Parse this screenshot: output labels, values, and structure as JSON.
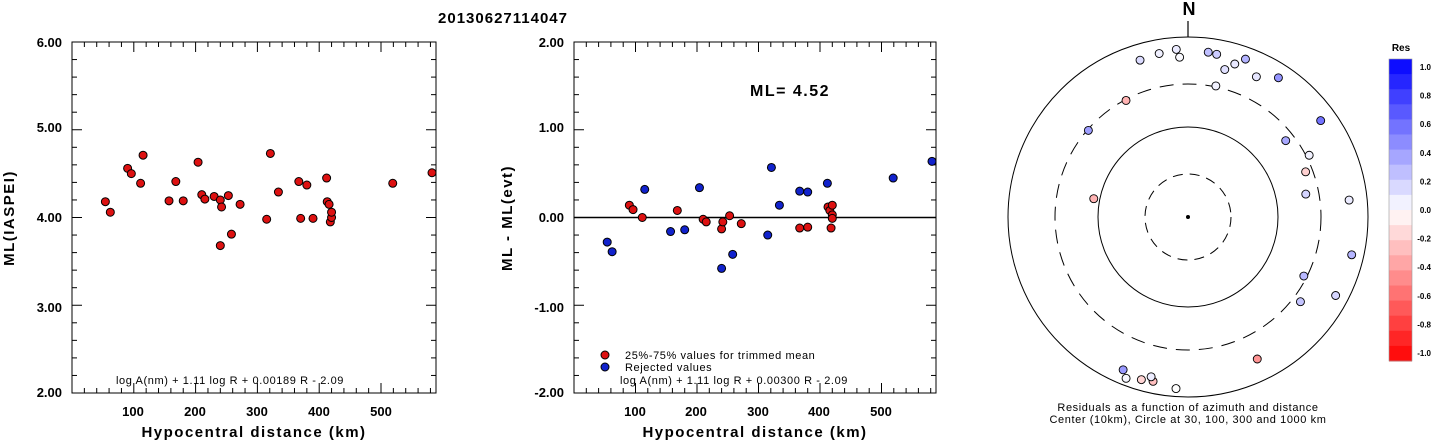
{
  "title": "20130627114047",
  "chart_data": [
    {
      "type": "scatter",
      "xlabel": "Hypocentral distance (km)",
      "ylabel": "ML(IASPEI)",
      "xlim": [
        0,
        590
      ],
      "ylim": [
        2.0,
        6.0
      ],
      "xticks": [
        "100",
        "200",
        "300",
        "400",
        "500"
      ],
      "yticks": [
        "2.00",
        "3.00",
        "4.00",
        "5.00",
        "6.00"
      ],
      "formula": "log A(nm) + 1.11 log R + 0.00189 R - 2.09",
      "series": [
        {
          "color": "#dd1111",
          "points": [
            [
              54,
              4.18
            ],
            [
              62,
              4.06
            ],
            [
              90,
              4.56
            ],
            [
              96,
              4.5
            ],
            [
              111,
              4.39
            ],
            [
              115,
              4.71
            ],
            [
              157,
              4.19
            ],
            [
              168,
              4.41
            ],
            [
              180,
              4.19
            ],
            [
              204,
              4.63
            ],
            [
              210,
              4.26
            ],
            [
              215,
              4.21
            ],
            [
              230,
              4.24
            ],
            [
              240,
              3.68
            ],
            [
              240,
              4.2
            ],
            [
              242,
              4.12
            ],
            [
              253,
              4.25
            ],
            [
              258,
              3.81
            ],
            [
              272,
              4.15
            ],
            [
              315,
              3.98
            ],
            [
              321,
              4.73
            ],
            [
              334,
              4.29
            ],
            [
              367,
              4.41
            ],
            [
              370,
              3.99
            ],
            [
              380,
              4.37
            ],
            [
              390,
              3.99
            ],
            [
              412,
              4.45
            ],
            [
              413,
              4.18
            ],
            [
              416,
              4.15
            ],
            [
              418,
              3.95
            ],
            [
              420,
              4.0
            ],
            [
              420,
              4.06
            ],
            [
              519,
              4.39
            ],
            [
              590,
              4.51
            ]
          ]
        }
      ]
    },
    {
      "type": "scatter",
      "xlabel": "Hypocentral distance (km)",
      "ylabel": "ML - ML(evt)",
      "xlim": [
        0,
        590
      ],
      "ylim": [
        -2.0,
        2.0
      ],
      "xticks": [
        "100",
        "200",
        "300",
        "400",
        "500"
      ],
      "yticks": [
        "-2.00",
        "-1.00",
        "0.00",
        "1.00",
        "2.00"
      ],
      "annotation": "ML= 4.52",
      "reference_line": 0,
      "formula": "log A(nm) + 1.11 log R + 0.00300 R - 2.09",
      "legend_position": "bottom-left",
      "series": [
        {
          "name": "25%-75% values for trimmed mean",
          "color": "#dd1111",
          "points": [
            [
              90,
              0.14
            ],
            [
              96,
              0.09
            ],
            [
              111,
              0.0
            ],
            [
              168,
              0.08
            ],
            [
              210,
              -0.02
            ],
            [
              215,
              -0.05
            ],
            [
              240,
              -0.13
            ],
            [
              242,
              -0.05
            ],
            [
              253,
              0.02
            ],
            [
              272,
              -0.07
            ],
            [
              367,
              -0.12
            ],
            [
              380,
              -0.11
            ],
            [
              413,
              0.12
            ],
            [
              416,
              0.08
            ],
            [
              418,
              -0.12
            ],
            [
              420,
              0.14
            ],
            [
              420,
              0.03
            ],
            [
              420,
              -0.01
            ]
          ]
        },
        {
          "name": "Rejected values",
          "color": "#1122cc",
          "points": [
            [
              54,
              -0.28
            ],
            [
              62,
              -0.39
            ],
            [
              115,
              0.32
            ],
            [
              157,
              -0.16
            ],
            [
              180,
              -0.14
            ],
            [
              204,
              0.34
            ],
            [
              240,
              -0.58
            ],
            [
              258,
              -0.42
            ],
            [
              315,
              -0.2
            ],
            [
              321,
              0.57
            ],
            [
              334,
              0.14
            ],
            [
              367,
              0.3
            ],
            [
              380,
              0.29
            ],
            [
              412,
              0.39
            ],
            [
              519,
              0.45
            ],
            [
              590,
              0.64
            ]
          ]
        }
      ]
    },
    {
      "type": "scatter",
      "polar": true,
      "north_label": "N",
      "caption_line1": "Residuals as a function of azimuth and distance",
      "caption_line2": "Center (10km), Circle at 30, 100, 300 and 1000 km",
      "colorbar_title": "Res",
      "colorbar_ticks": [
        "1.0",
        "0.8",
        "0.6",
        "0.4",
        "0.2",
        "0.0",
        "-0.2",
        "-0.4",
        "-0.6",
        "-0.8",
        "-1.0"
      ],
      "colorbar_range": [
        -1.0,
        1.0
      ],
      "colorbar_colors": {
        "positive": "#0000ff",
        "zero": "#ffffff",
        "negative": "#ff0000"
      },
      "points_az_dist_res": [
        [
          -17,
          410,
          0.14
        ],
        [
          -10,
          415,
          0.06
        ],
        [
          -4,
          420,
          0.08
        ],
        [
          -3,
          400,
          0.02
        ],
        [
          7,
          415,
          0.25
        ],
        [
          10,
          413,
          0.2
        ],
        [
          14,
          380,
          0.12
        ],
        [
          17,
          400,
          0.09
        ],
        [
          20,
          420,
          0.3
        ],
        [
          26,
          390,
          0.1
        ],
        [
          33,
          415,
          0.42
        ],
        [
          54,
          410,
          0.55
        ],
        [
          -28,
          330,
          -0.3
        ],
        [
          12,
          335,
          0.05
        ],
        [
          -49,
          330,
          0.38
        ],
        [
          52,
          310,
          0.34
        ],
        [
          63,
          340,
          0.05
        ],
        [
          69,
          315,
          -0.18
        ],
        [
          79,
          300,
          0.17
        ],
        [
          84,
          405,
          0.08
        ],
        [
          103,
          420,
          0.29
        ],
        [
          117,
          325,
          0.28
        ],
        [
          127,
          352,
          0.23
        ],
        [
          118,
          418,
          0.16
        ],
        [
          -79,
          240,
          -0.3
        ],
        [
          154,
          395,
          -0.42
        ],
        [
          -157,
          415,
          0.4
        ],
        [
          -159,
          432,
          0.03
        ],
        [
          -164,
          423,
          -0.17
        ],
        [
          -168,
          420,
          -0.25
        ],
        [
          -167,
          410,
          0.07
        ],
        [
          -176,
          430,
          0.0
        ]
      ]
    }
  ]
}
